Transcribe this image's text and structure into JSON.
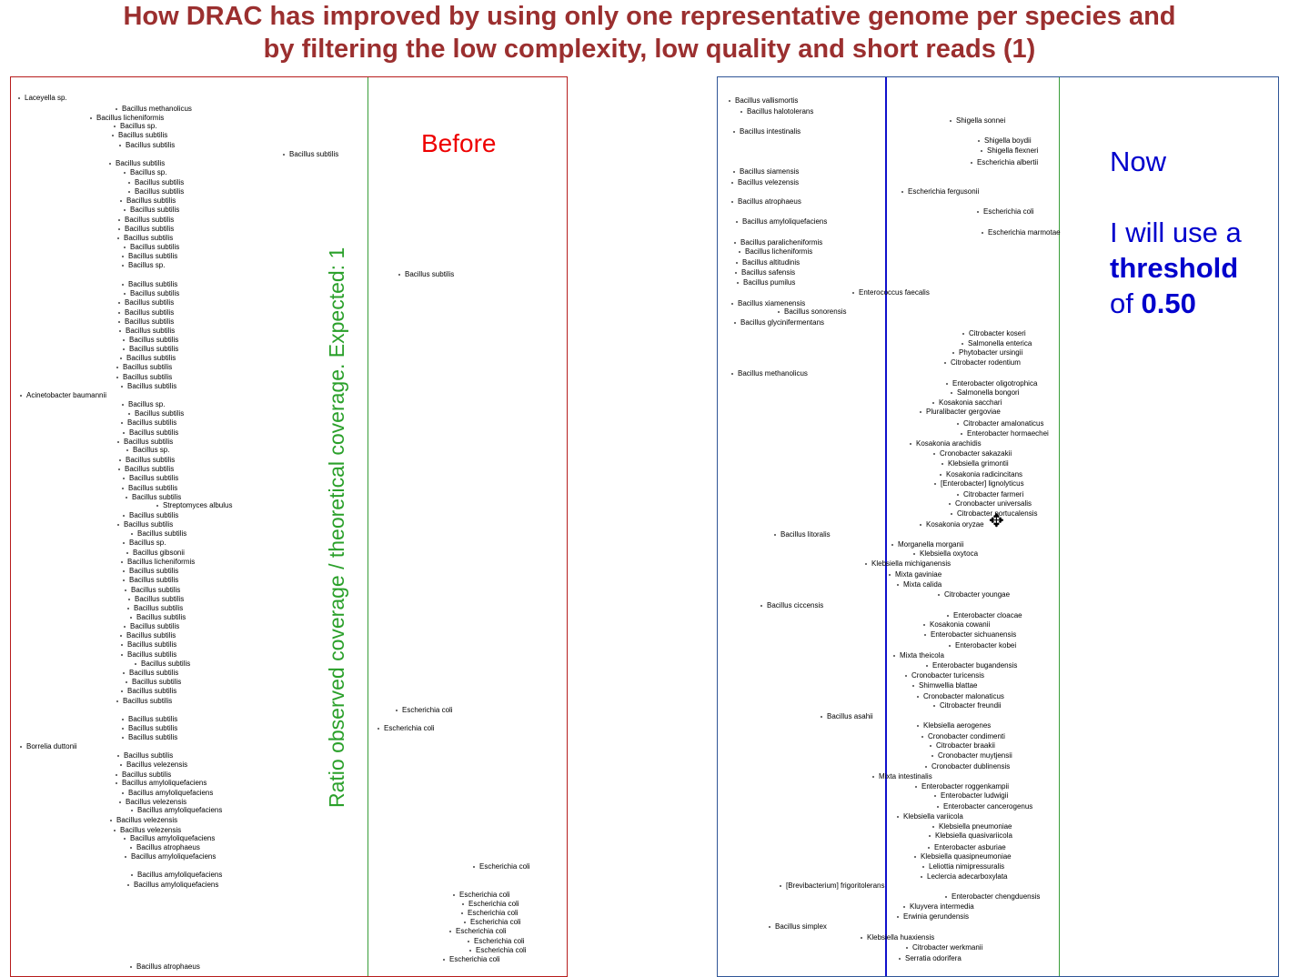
{
  "title": {
    "line1": "How DRAC has improved by using only one representative genome per species and",
    "line2": "by filtering the low complexity, low quality and short reads (1)"
  },
  "colors": {
    "title": "#9b2f2f",
    "before": "#ee0000",
    "now": "#0000cc",
    "ylabel": "#2aa02a",
    "threshold_line": "#1010cc",
    "reference_line": "#3a9d3a"
  },
  "left": {
    "ylabel": "Ratio observed coverage / theoretical coverage.  Expected: 1",
    "heading": "Before",
    "points": [
      "Laceyella sp.",
      "Bacillus methanolicus",
      "Bacillus licheniformis",
      "Bacillus sp.",
      "Bacillus subtilis",
      "Bacillus subtilis",
      "Bacillus subtilis",
      "Bacillus subtilis",
      "Bacillus sp.",
      "Bacillus subtilis",
      "Bacillus subtilis",
      "Bacillus subtilis",
      "Bacillus subtilis",
      "Bacillus subtilis",
      "Bacillus subtilis",
      "Bacillus subtilis",
      "Bacillus subtilis",
      "Bacillus subtilis",
      "Bacillus sp.",
      "Bacillus subtilis",
      "Bacillus subtilis",
      "Bacillus subtilis",
      "Bacillus subtilis",
      "Bacillus subtilis",
      "Bacillus subtilis",
      "Bacillus subtilis",
      "Bacillus subtilis",
      "Bacillus subtilis",
      "Bacillus subtilis",
      "Bacillus subtilis",
      "Bacillus subtilis",
      "Bacillus subtilis",
      "Acinetobacter baumannii",
      "Bacillus sp.",
      "Bacillus subtilis",
      "Bacillus subtilis",
      "Bacillus subtilis",
      "Bacillus subtilis",
      "Bacillus sp.",
      "Bacillus subtilis",
      "Bacillus subtilis",
      "Bacillus subtilis",
      "Bacillus subtilis",
      "Bacillus subtilis",
      "Streptomyces albulus",
      "Bacillus subtilis",
      "Bacillus subtilis",
      "Bacillus subtilis",
      "Bacillus sp.",
      "Bacillus gibsonii",
      "Bacillus licheniformis",
      "Bacillus subtilis",
      "Bacillus subtilis",
      "Bacillus subtilis",
      "Bacillus subtilis",
      "Bacillus subtilis",
      "Bacillus subtilis",
      "Bacillus subtilis",
      "Bacillus subtilis",
      "Bacillus subtilis",
      "Bacillus subtilis",
      "Bacillus subtilis",
      "Bacillus subtilis",
      "Bacillus subtilis",
      "Bacillus subtilis",
      "Bacillus subtilis",
      "Bacillus subtilis",
      "Borrelia duttonii",
      "Bacillus subtilis",
      "Bacillus velezensis",
      "Bacillus subtilis",
      "Bacillus amyloliquefaciens",
      "Bacillus amyloliquefaciens",
      "Bacillus velezensis",
      "Bacillus amyloliquefaciens",
      "Bacillus velezensis",
      "Bacillus velezensis",
      "Bacillus amyloliquefaciens",
      "Bacillus atrophaeus",
      "Bacillus amyloliquefaciens",
      "Bacillus amyloliquefaciens",
      "Bacillus amyloliquefaciens",
      "Bacillus atrophaeus",
      "Bacillus subtilis",
      "Bacillus subtilis",
      "Escherichia coli",
      "Escherichia coli",
      "Escherichia coli",
      "Escherichia coli",
      "Escherichia coli",
      "Escherichia coli",
      "Escherichia coli",
      "Escherichia coli",
      "Escherichia coli",
      "Escherichia coli",
      "Escherichia coli"
    ]
  },
  "right": {
    "now_label": "Now",
    "threshold_text_pre": "I will use a",
    "threshold_word": "threshold",
    "threshold_of": "of",
    "threshold_value": "0.50",
    "points": [
      "Bacillus vallismortis",
      "Bacillus halotolerans",
      "Shigella sonnei",
      "Bacillus intestinalis",
      "Shigella boydii",
      "Shigella flexneri",
      "Escherichia albertii",
      "Bacillus siamensis",
      "Bacillus velezensis",
      "Escherichia fergusonii",
      "Bacillus atrophaeus",
      "Escherichia coli",
      "Bacillus amyloliquefaciens",
      "Escherichia marmotae",
      "Bacillus paralicheniformis",
      "Bacillus licheniformis",
      "Bacillus altitudinis",
      "Bacillus safensis",
      "Bacillus pumilus",
      "Enterococcus faecalis",
      "Bacillus xiamenensis",
      "Bacillus sonorensis",
      "Bacillus glycinifermentans",
      "Citrobacter koseri",
      "Salmonella enterica",
      "Phytobacter ursingii",
      "Citrobacter rodentium",
      "Bacillus methanolicus",
      "Enterobacter oligotrophica",
      "Salmonella bongori",
      "Kosakonia sacchari",
      "Pluralibacter gergoviae",
      "Citrobacter amalonaticus",
      "Enterobacter hormaechei",
      "Kosakonia arachidis",
      "Cronobacter sakazakii",
      "Klebsiella grimontii",
      "Kosakonia radicincitans",
      "[Enterobacter] lignolyticus",
      "Citrobacter farmeri",
      "Cronobacter universalis",
      "Citrobacter portucalensis",
      "Kosakonia oryzae",
      "Bacillus litoralis",
      "Morganella morganii",
      "Klebsiella oxytoca",
      "Klebsiella michiganensis",
      "Mixta gaviniae",
      "Mixta calida",
      "Citrobacter youngae",
      "Bacillus ciccensis",
      "Enterobacter cloacae",
      "Kosakonia cowanii",
      "Enterobacter sichuanensis",
      "Enterobacter kobei",
      "Mixta theicola",
      "Enterobacter bugandensis",
      "Cronobacter turicensis",
      "Shimwellia blattae",
      "Cronobacter malonaticus",
      "Citrobacter freundii",
      "Bacillus asahii",
      "Klebsiella aerogenes",
      "Cronobacter condimenti",
      "Citrobacter braakii",
      "Cronobacter muytjensii",
      "Cronobacter dublinensis",
      "Mixta intestinalis",
      "Enterobacter roggenkampii",
      "Enterobacter ludwigii",
      "Enterobacter cancerogenus",
      "Klebsiella variicola",
      "Klebsiella pneumoniae",
      "Klebsiella quasivariicola",
      "Enterobacter asburiae",
      "Klebsiella quasipneumoniae",
      "Leliottia nimipressuralis",
      "Leclercia adecarboxylata",
      "[Brevibacterium] frigoritolerans",
      "Enterobacter chengduensis",
      "Kluyvera intermedia",
      "Erwinia gerundensis",
      "Bacillus simplex",
      "Klebsiella huaxiensis",
      "Citrobacter werkmanii",
      "Serratia odorifera"
    ]
  }
}
